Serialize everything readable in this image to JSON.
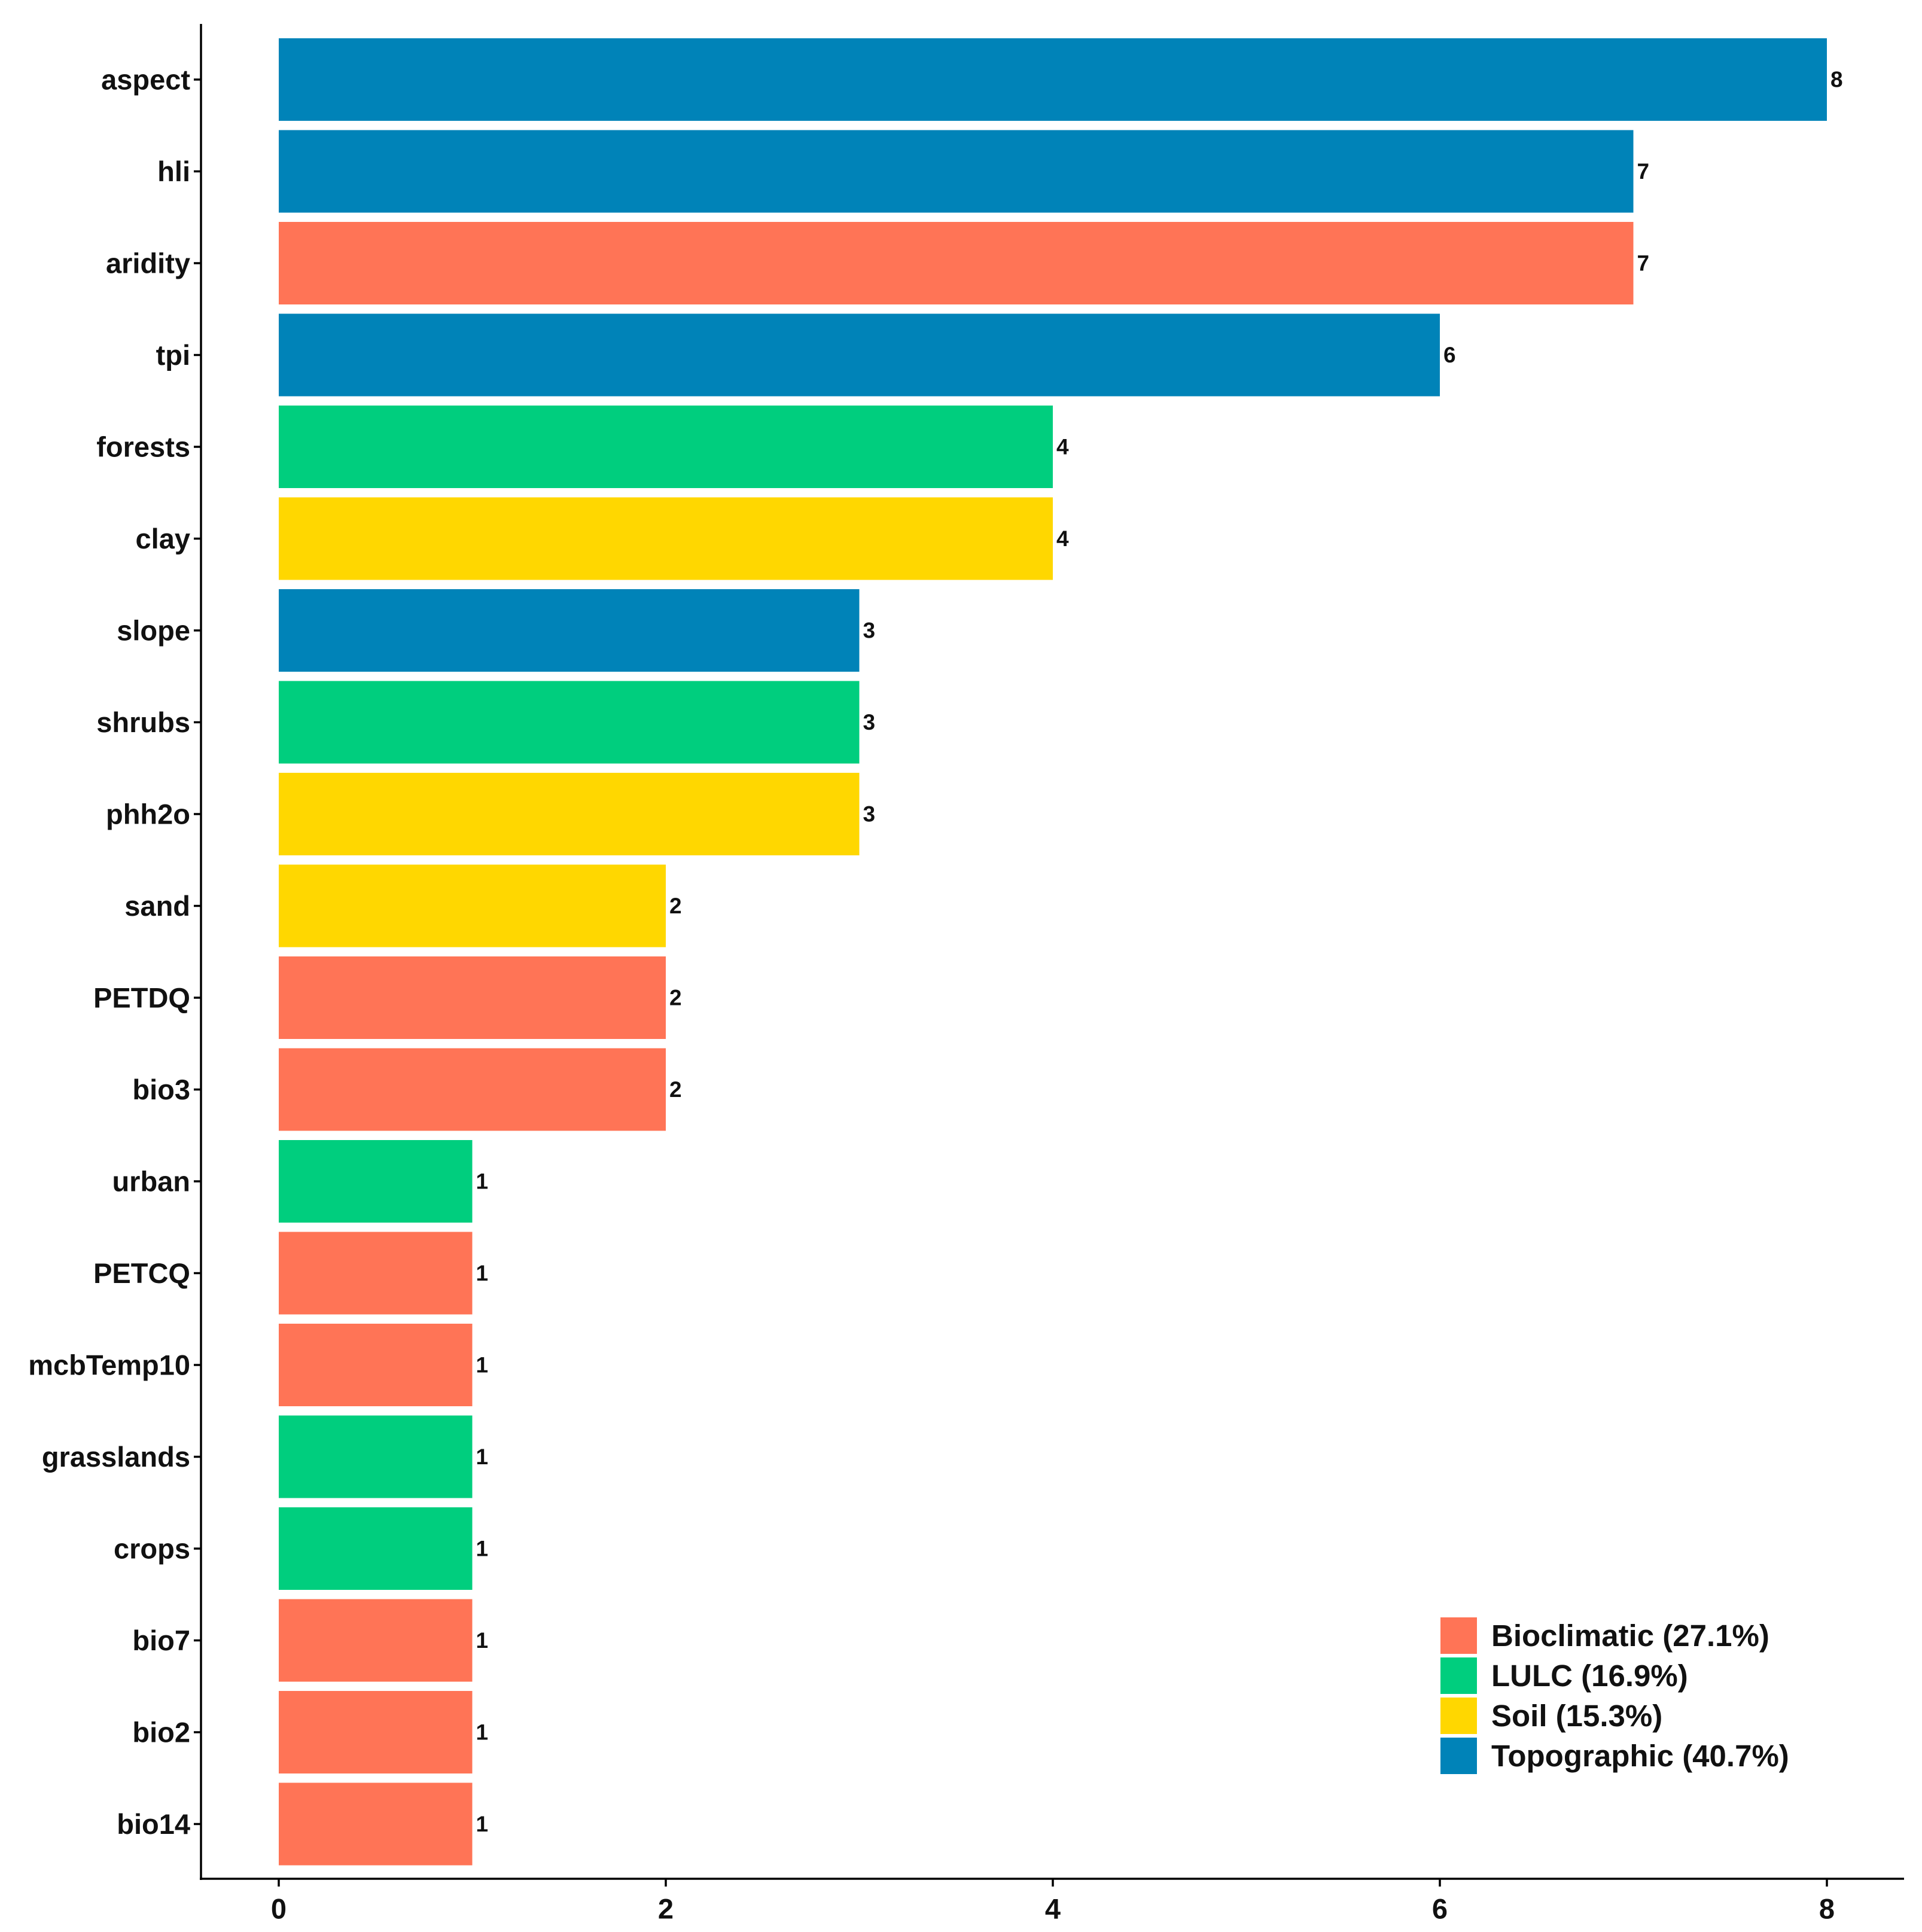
{
  "chart_data": {
    "type": "bar",
    "orientation": "horizontal",
    "title": "",
    "xlabel": "",
    "ylabel": "",
    "xlim": [
      0,
      8
    ],
    "x_ticks": [
      0,
      2,
      4,
      6,
      8
    ],
    "grid": false,
    "legend_position": "bottom-right",
    "groups": [
      {
        "name": "Bioclimatic (27.1%)",
        "key": "Bioclimatic",
        "color": "#FF7456"
      },
      {
        "name": "LULC (16.9%)",
        "key": "LULC",
        "color": "#00CE7E"
      },
      {
        "name": "Soil (15.3%)",
        "key": "Soil",
        "color": "#FFD700"
      },
      {
        "name": "Topographic (40.7%)",
        "key": "Topographic",
        "color": "#0083B8"
      }
    ],
    "bars": [
      {
        "category": "aspect",
        "value": 8,
        "group": "Topographic"
      },
      {
        "category": "hli",
        "value": 7,
        "group": "Topographic"
      },
      {
        "category": "aridity",
        "value": 7,
        "group": "Bioclimatic"
      },
      {
        "category": "tpi",
        "value": 6,
        "group": "Topographic"
      },
      {
        "category": "forests",
        "value": 4,
        "group": "LULC"
      },
      {
        "category": "clay",
        "value": 4,
        "group": "Soil"
      },
      {
        "category": "slope",
        "value": 3,
        "group": "Topographic"
      },
      {
        "category": "shrubs",
        "value": 3,
        "group": "LULC"
      },
      {
        "category": "phh2o",
        "value": 3,
        "group": "Soil"
      },
      {
        "category": "sand",
        "value": 2,
        "group": "Soil"
      },
      {
        "category": "PETDQ",
        "value": 2,
        "group": "Bioclimatic"
      },
      {
        "category": "bio3",
        "value": 2,
        "group": "Bioclimatic"
      },
      {
        "category": "urban",
        "value": 1,
        "group": "LULC"
      },
      {
        "category": "PETCQ",
        "value": 1,
        "group": "Bioclimatic"
      },
      {
        "category": "mcbTemp10",
        "value": 1,
        "group": "Bioclimatic"
      },
      {
        "category": "grasslands",
        "value": 1,
        "group": "LULC"
      },
      {
        "category": "crops",
        "value": 1,
        "group": "LULC"
      },
      {
        "category": "bio7",
        "value": 1,
        "group": "Bioclimatic"
      },
      {
        "category": "bio2",
        "value": 1,
        "group": "Bioclimatic"
      },
      {
        "category": "bio14",
        "value": 1,
        "group": "Bioclimatic"
      }
    ]
  }
}
